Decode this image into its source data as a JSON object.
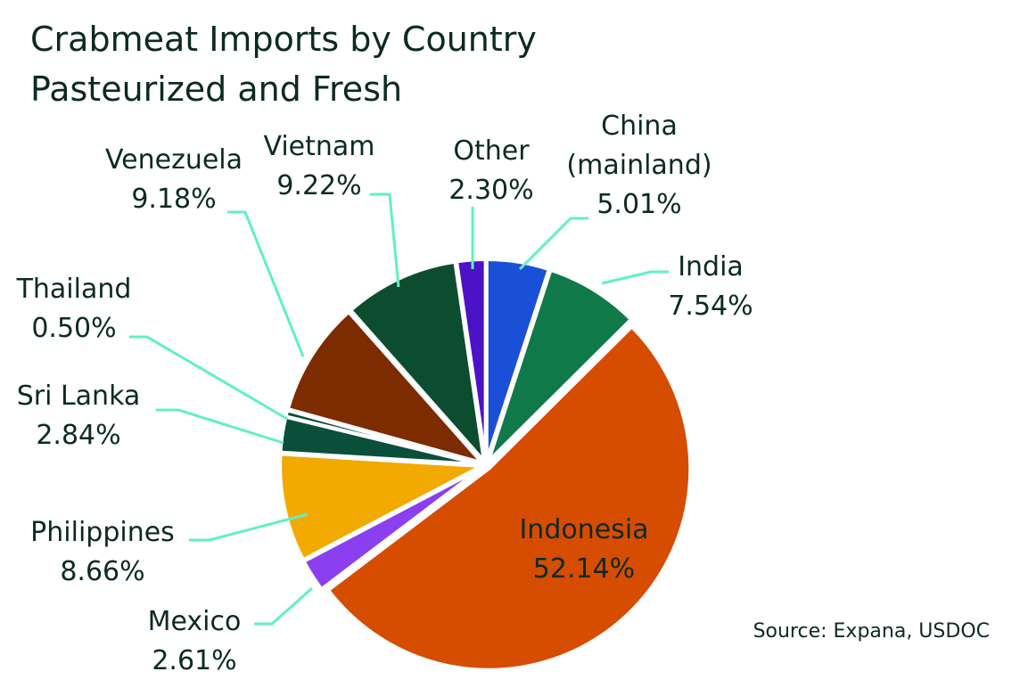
{
  "chart_data": {
    "type": "pie",
    "title": "Crabmeat Imports by Country",
    "subtitle": "Pasteurized and Fresh",
    "source": "Source: Expana, USDOC",
    "categories": [
      "China (mainland)",
      "India",
      "Indonesia",
      "Mexico",
      "Philippines",
      "Sri Lanka",
      "Thailand",
      "Venezuela",
      "Vietnam",
      "Other"
    ],
    "values": [
      5.01,
      7.54,
      52.14,
      2.61,
      8.66,
      2.84,
      0.5,
      9.18,
      9.22,
      2.3
    ],
    "value_labels": [
      "5.01%",
      "7.54%",
      "52.14%",
      "2.61%",
      "8.66%",
      "2.84%",
      "0.50%",
      "9.18%",
      "9.22%",
      "2.30%"
    ],
    "colors": [
      "#1a4fd8",
      "#10794a",
      "#d64c00",
      "#8a3ff0",
      "#f2a900",
      "#0a4f3a",
      "#0b4a35",
      "#7d2b00",
      "#0b4d2e",
      "#4b12c8"
    ]
  }
}
